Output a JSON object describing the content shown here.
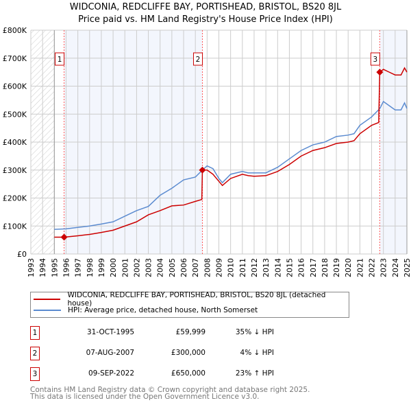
{
  "chart_data": {
    "type": "line",
    "title": "WIDCONIA, REDCLIFFE BAY, PORTISHEAD, BRISTOL, BS20 8JL",
    "subtitle": "Price paid vs. HM Land Registry's House Price Index (HPI)",
    "xlim": [
      1993,
      2025
    ],
    "ylim": [
      0,
      800000
    ],
    "grid": true,
    "y_ticks": [
      {
        "v": 0,
        "label": "£0"
      },
      {
        "v": 100000,
        "label": "£100K"
      },
      {
        "v": 200000,
        "label": "£200K"
      },
      {
        "v": 300000,
        "label": "£300K"
      },
      {
        "v": 400000,
        "label": "£400K"
      },
      {
        "v": 500000,
        "label": "£500K"
      },
      {
        "v": 600000,
        "label": "£600K"
      },
      {
        "v": 700000,
        "label": "£700K"
      },
      {
        "v": 800000,
        "label": "£800K"
      }
    ],
    "x_ticks": [
      "1993",
      "1994",
      "1995",
      "1996",
      "1997",
      "1998",
      "1999",
      "2000",
      "2001",
      "2002",
      "2003",
      "2004",
      "2005",
      "2006",
      "2007",
      "2008",
      "2009",
      "2010",
      "2011",
      "2012",
      "2013",
      "2014",
      "2015",
      "2016",
      "2017",
      "2018",
      "2019",
      "2020",
      "2021",
      "2022",
      "2023",
      "2024",
      "2025"
    ],
    "series": [
      {
        "name": "WIDCONIA, REDCLIFFE BAY, PORTISHEAD, BRISTOL, BS20 8JL (detached house)",
        "color": "#cc0000",
        "x": [
          1995,
          1995.83,
          1997,
          1998,
          1999,
          2000,
          2001,
          2002,
          2003,
          2004,
          2005,
          2006,
          2007,
          2007.55,
          2007.6,
          2008,
          2008.5,
          2009,
          2009.3,
          2010,
          2011,
          2011.5,
          2012,
          2013,
          2014,
          2015,
          2016,
          2017,
          2018,
          2019,
          2020,
          2020.5,
          2021,
          2022,
          2022.6,
          2022.69,
          2023,
          2023.5,
          2024,
          2024.5,
          2024.8,
          2025
        ],
        "y": [
          60000,
          60000,
          65000,
          70000,
          77000,
          85000,
          100000,
          115000,
          140000,
          155000,
          172000,
          175000,
          188000,
          195000,
          300000,
          300000,
          285000,
          260000,
          245000,
          270000,
          285000,
          280000,
          278000,
          280000,
          295000,
          320000,
          350000,
          370000,
          380000,
          395000,
          400000,
          405000,
          430000,
          460000,
          470000,
          650000,
          660000,
          650000,
          640000,
          640000,
          665000,
          650000
        ]
      },
      {
        "name": "HPI: Average price, detached house, North Somerset",
        "color": "#5b8bd0",
        "x": [
          1995,
          1996,
          1997,
          1998,
          1999,
          2000,
          2001,
          2002,
          2003,
          2004,
          2005,
          2006,
          2007,
          2007.6,
          2008,
          2008.5,
          2009,
          2009.3,
          2010,
          2011,
          2011.5,
          2012,
          2013,
          2014,
          2015,
          2016,
          2017,
          2018,
          2019,
          2020,
          2020.5,
          2021,
          2022,
          2022.7,
          2023,
          2023.5,
          2024,
          2024.5,
          2024.8,
          2025
        ],
        "y": [
          88000,
          90000,
          95000,
          100000,
          107000,
          115000,
          135000,
          155000,
          170000,
          210000,
          235000,
          265000,
          275000,
          300000,
          315000,
          305000,
          270000,
          255000,
          285000,
          295000,
          290000,
          290000,
          290000,
          310000,
          340000,
          370000,
          390000,
          400000,
          420000,
          425000,
          430000,
          460000,
          490000,
          520000,
          545000,
          530000,
          515000,
          515000,
          540000,
          520000
        ]
      }
    ],
    "sales": [
      {
        "n": "1",
        "x": 1995.83,
        "y": 59999
      },
      {
        "n": "2",
        "x": 2007.6,
        "y": 300000
      },
      {
        "n": "3",
        "x": 2022.69,
        "y": 650000
      }
    ],
    "legend_placement": "below"
  },
  "legend": {
    "red": "WIDCONIA, REDCLIFFE BAY, PORTISHEAD, BRISTOL, BS20 8JL (detached house)",
    "blue": "HPI: Average price, detached house, North Somerset"
  },
  "table": [
    {
      "n": "1",
      "date": "31-OCT-1995",
      "price": "£59,999",
      "hpi": "35% ↓ HPI"
    },
    {
      "n": "2",
      "date": "07-AUG-2007",
      "price": "£300,000",
      "hpi": "4% ↓ HPI"
    },
    {
      "n": "3",
      "date": "09-SEP-2022",
      "price": "£650,000",
      "hpi": "23% ↑ HPI"
    }
  ],
  "footer": {
    "line1": "Contains HM Land Registry data © Crown copyright and database right 2025.",
    "line2": "This data is licensed under the Open Government Licence v3.0."
  }
}
